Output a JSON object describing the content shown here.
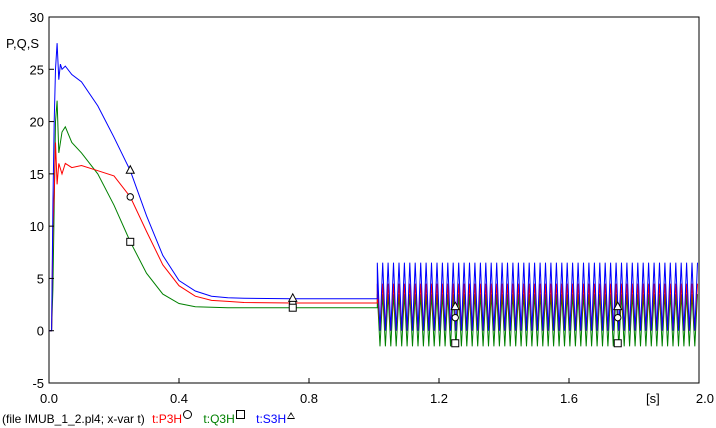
{
  "chart_data": {
    "type": "line",
    "ylabel": "P,Q,S",
    "xunit": "[s]",
    "xlim": [
      0.0,
      2.0
    ],
    "ylim": [
      -5,
      30
    ],
    "xticks": [
      "0.0",
      "0.4",
      "0.8",
      "1.2",
      "1.6",
      "2.0"
    ],
    "yticks": [
      "-5",
      "0",
      "5",
      "10",
      "15",
      "20",
      "25",
      "30"
    ],
    "grid": false,
    "series": [
      {
        "name": "t:P3H",
        "color": "#ff0000",
        "marker": "circle",
        "x": [
          0.0,
          0.008,
          0.012,
          0.016,
          0.02,
          0.025,
          0.03,
          0.04,
          0.05,
          0.07,
          0.1,
          0.15,
          0.2,
          0.25,
          0.3,
          0.35,
          0.4,
          0.45,
          0.5,
          0.55,
          0.6,
          0.75,
          1.0
        ],
        "y": [
          0,
          0,
          10,
          13,
          18,
          14,
          16,
          15,
          16,
          15.6,
          15.8,
          15.3,
          14.8,
          12.8,
          9.5,
          6.3,
          4.3,
          3.3,
          2.9,
          2.8,
          2.7,
          2.65,
          2.65
        ],
        "oscillation": {
          "start": 1.01,
          "end": 2.0,
          "max": 4.5,
          "min": 0.0
        },
        "marker_x": [
          0.25,
          0.75,
          1.25,
          1.75
        ]
      },
      {
        "name": "t:Q3H",
        "color": "#008000",
        "marker": "square",
        "x": [
          0.0,
          0.008,
          0.012,
          0.016,
          0.02,
          0.025,
          0.03,
          0.04,
          0.05,
          0.07,
          0.1,
          0.15,
          0.2,
          0.25,
          0.3,
          0.35,
          0.4,
          0.45,
          0.5,
          0.55,
          0.6,
          0.75,
          1.0
        ],
        "y": [
          0,
          0,
          4,
          12,
          20,
          22,
          17,
          19,
          19.5,
          18,
          17,
          15,
          12,
          8.5,
          5.5,
          3.5,
          2.6,
          2.3,
          2.25,
          2.2,
          2.2,
          2.2,
          2.2
        ],
        "oscillation": {
          "start": 1.01,
          "end": 2.0,
          "max": 3.5,
          "min": -1.5
        },
        "marker_x": [
          0.25,
          0.75,
          1.25,
          1.75
        ]
      },
      {
        "name": "t:S3H",
        "color": "#0000ff",
        "marker": "triangle",
        "x": [
          0.0,
          0.008,
          0.012,
          0.016,
          0.02,
          0.025,
          0.03,
          0.035,
          0.04,
          0.05,
          0.07,
          0.1,
          0.15,
          0.2,
          0.25,
          0.3,
          0.35,
          0.4,
          0.45,
          0.5,
          0.55,
          0.6,
          0.75,
          1.0
        ],
        "y": [
          0,
          0,
          12,
          20,
          25,
          27.5,
          24,
          25.5,
          25,
          25.3,
          24.5,
          23.8,
          21.5,
          18.5,
          15.3,
          11,
          7.2,
          4.8,
          3.8,
          3.3,
          3.15,
          3.1,
          3.05,
          3.05
        ],
        "oscillation": {
          "start": 1.01,
          "end": 2.0,
          "max": 6.5,
          "min": 0.0
        },
        "marker_x": [
          0.25,
          0.75,
          1.25,
          1.75
        ]
      }
    ]
  },
  "footer": {
    "file_text": "(file IMUB_1_2.pl4; x-var t)"
  }
}
